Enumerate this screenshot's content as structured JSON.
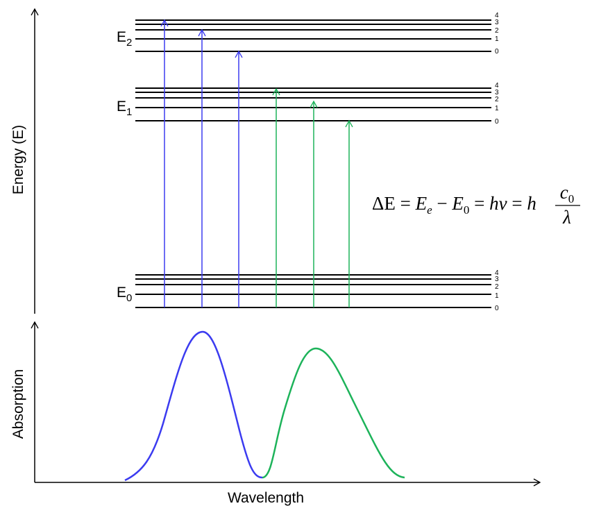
{
  "axes": {
    "energy": "Energy (E)",
    "absorption": "Absorption",
    "wavelength": "Wavelength"
  },
  "levels": [
    {
      "symbol": "E",
      "subscript": "2",
      "sublevels": [
        "0",
        "1",
        "2",
        "3",
        "4"
      ]
    },
    {
      "symbol": "E",
      "subscript": "1",
      "sublevels": [
        "0",
        "1",
        "2",
        "3",
        "4"
      ]
    },
    {
      "symbol": "E",
      "subscript": "0",
      "sublevels": [
        "0",
        "1",
        "2",
        "3",
        "4"
      ]
    }
  ],
  "equation": {
    "part1": "ΔE = ",
    "e1": "E",
    "e1_sub": "e",
    "part2": " − ",
    "e2": "E",
    "e2_sub": "0",
    "part3": " = ",
    "h1": "h",
    "nu": "ν",
    "part4": " = ",
    "h2": "h",
    "num": "c",
    "num_sub": "0",
    "den": "λ"
  }
}
